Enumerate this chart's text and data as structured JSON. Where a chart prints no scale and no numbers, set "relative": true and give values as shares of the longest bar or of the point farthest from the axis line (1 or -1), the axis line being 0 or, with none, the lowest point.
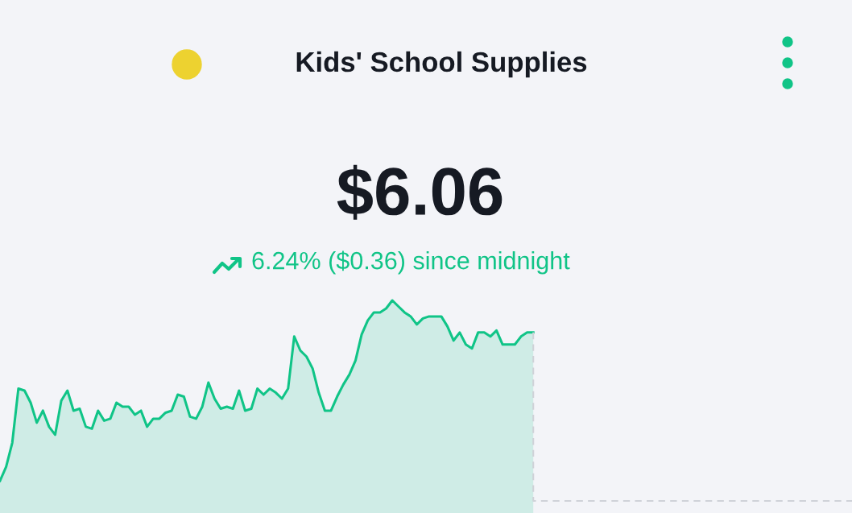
{
  "chart_data": {
    "type": "area",
    "title": "Kids' School Supplies",
    "subtitle": "$6.06",
    "annotations": [
      "6.24% ($0.36) since midnight"
    ],
    "relative": true,
    "color": "#10c487",
    "categories": [
      null,
      null,
      null,
      null,
      null,
      null,
      null,
      null,
      null,
      null,
      null,
      null,
      null,
      null,
      null,
      null,
      null,
      null,
      null,
      null,
      null,
      null,
      null,
      null,
      null,
      null,
      null,
      null,
      null,
      null,
      null,
      null,
      null,
      null,
      null,
      null,
      null,
      null,
      null,
      null,
      null,
      null,
      null,
      null,
      null,
      null,
      null,
      null,
      null,
      null,
      null,
      null,
      null,
      null,
      null,
      null,
      null,
      null,
      null,
      null,
      null,
      null,
      null,
      null,
      null,
      null,
      null,
      null,
      null,
      null,
      null,
      null,
      null,
      null,
      null,
      null,
      null,
      null,
      null,
      null,
      null,
      null,
      null,
      null,
      null,
      null,
      null,
      null,
      null,
      null,
      null,
      null,
      null,
      null,
      null,
      null,
      null,
      null,
      null,
      null,
      null,
      null,
      null,
      null,
      null,
      null,
      null,
      null,
      null,
      null,
      null,
      null,
      null,
      null,
      null,
      null,
      null,
      null,
      null,
      null,
      null,
      null,
      null,
      null,
      null,
      null,
      null,
      null,
      null,
      null,
      null,
      null,
      null,
      null,
      null,
      null,
      null,
      null,
      null,
      null
    ],
    "values": [
      0.1,
      0.17,
      0.29,
      0.56,
      0.55,
      0.49,
      0.39,
      0.45,
      0.37,
      0.33,
      0.5,
      0.55,
      0.45,
      0.46,
      0.37,
      0.36,
      0.45,
      0.4,
      0.41,
      0.49,
      0.47,
      0.47,
      0.43,
      0.45,
      0.37,
      0.41,
      0.41,
      0.44,
      0.45,
      0.53,
      0.52,
      0.42,
      0.41,
      0.47,
      0.59,
      0.51,
      0.46,
      0.47,
      0.46,
      0.55,
      0.45,
      0.46,
      0.56,
      0.53,
      0.56,
      0.54,
      0.51,
      0.56,
      0.82,
      0.75,
      0.72,
      0.66,
      0.54,
      0.45,
      0.45,
      0.52,
      0.58,
      0.63,
      0.7,
      0.83,
      0.9,
      0.94,
      0.94,
      0.96,
      1.0,
      0.97,
      0.94,
      0.92,
      0.88,
      0.91,
      0.92,
      0.92,
      0.92,
      0.87,
      0.8,
      0.84,
      0.78,
      0.76,
      0.84,
      0.84,
      0.82,
      0.85,
      0.78,
      0.78,
      0.78,
      0.82,
      0.84,
      0.84,
      null,
      null,
      null,
      null,
      null,
      null,
      null,
      null,
      null,
      null,
      null,
      null,
      null,
      null,
      null,
      null,
      null,
      null,
      null,
      null,
      null,
      null,
      null,
      null,
      null,
      null,
      null,
      null,
      null,
      null,
      null,
      null,
      null,
      null,
      null,
      null,
      null,
      null,
      null,
      null,
      null,
      null,
      null,
      null,
      null,
      null,
      null,
      null,
      null,
      null,
      null,
      null
    ],
    "ref_lines": [
      {
        "axis": "y",
        "value": 0,
        "line_style": "dashed",
        "color": "#cfd2d8"
      }
    ]
  }
}
